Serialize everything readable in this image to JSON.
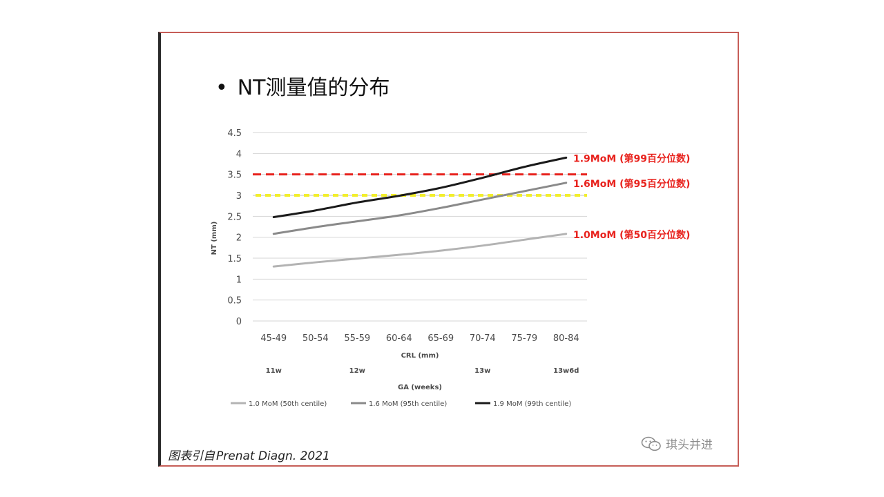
{
  "slide": {
    "bullet": "•",
    "title": "NT测量值的分布",
    "caption_cn": "图表引自",
    "caption_src": "Prenat Diagn. 2021",
    "watermark": "琪头并进"
  },
  "colors": {
    "frame": "#c65d57",
    "series_50": "#b3b3b3",
    "series_95": "#8a8a8a",
    "series_99": "#1a1a1a",
    "ref_red": "#e8221d",
    "ref_yellow": "#f2ee2b",
    "label_red": "#e8221d"
  },
  "chart_data": {
    "type": "line",
    "xlabel": "CRL (mm)",
    "ylabel": "NT (mm)",
    "ylim": [
      0,
      4.5
    ],
    "yticks": [
      "0",
      "0.5",
      "1",
      "1.5",
      "2",
      "2.5",
      "3",
      "3.5",
      "4",
      "4.5"
    ],
    "ytick_values": [
      0,
      0.5,
      1,
      1.5,
      2,
      2.5,
      3,
      3.5,
      4,
      4.5
    ],
    "grid": true,
    "categories": [
      "45-49",
      "50-54",
      "55-59",
      "60-64",
      "65-69",
      "70-74",
      "75-79",
      "80-84"
    ],
    "secondary_axis": {
      "label": "GA (weeks)",
      "ticks": [
        {
          "label": "11w",
          "category_index": 0
        },
        {
          "label": "12w",
          "category_index": 2
        },
        {
          "label": "13w",
          "category_index": 5
        },
        {
          "label": "13w6d",
          "category_index": 7
        }
      ]
    },
    "series": [
      {
        "name": "1.0 MoM (50th centile)",
        "key": "series_50",
        "values": [
          1.3,
          1.4,
          1.49,
          1.58,
          1.68,
          1.8,
          1.94,
          2.08
        ]
      },
      {
        "name": "1.6 MoM (95th centile)",
        "key": "series_95",
        "values": [
          2.08,
          2.24,
          2.38,
          2.52,
          2.7,
          2.9,
          3.1,
          3.3
        ]
      },
      {
        "name": "1.9 MoM (99th centile)",
        "key": "series_99",
        "values": [
          2.48,
          2.64,
          2.83,
          2.99,
          3.18,
          3.42,
          3.68,
          3.9
        ]
      }
    ],
    "reference_lines": [
      {
        "value": 3.5,
        "style": "red-dashed",
        "key": "ref_red"
      },
      {
        "value": 3.0,
        "style": "yellow-dashed",
        "key": "ref_yellow"
      }
    ],
    "annotations": [
      {
        "text": "1.9MoM (第99百分位数)",
        "series_index": 2
      },
      {
        "text": "1.6MoM (第95百分位数)",
        "series_index": 1
      },
      {
        "text": "1.0MoM (第50百分位数)",
        "series_index": 0
      }
    ],
    "legend_position": "bottom"
  }
}
